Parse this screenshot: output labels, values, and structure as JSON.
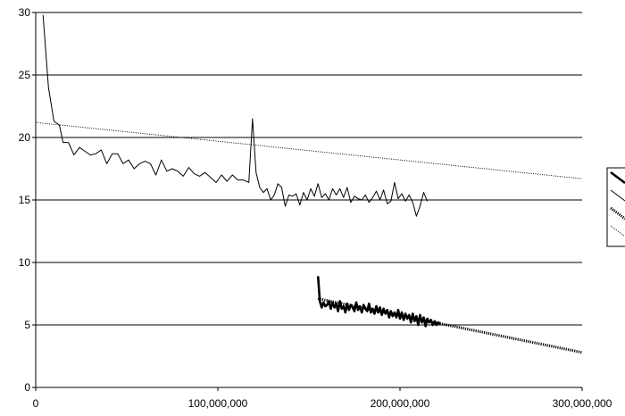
{
  "chart_data": {
    "type": "line",
    "title": "",
    "xlabel": "",
    "ylabel": "",
    "xlim": [
      0,
      300000000
    ],
    "ylim": [
      0,
      30
    ],
    "x_ticks": [
      0,
      100000000,
      200000000,
      300000000
    ],
    "x_tick_labels": [
      "0",
      "100,000,000",
      "200,000,000",
      "300,000,000"
    ],
    "y_ticks": [
      0,
      5,
      10,
      15,
      20,
      25,
      30
    ],
    "y_tick_labels": [
      "0",
      "5",
      "10",
      "15",
      "20",
      "25",
      "30"
    ],
    "grid": "horizontal",
    "legend": "right",
    "series": [
      {
        "style": "thick-solid",
        "color": "#000000",
        "points": [
          [
            155000000,
            8.9
          ],
          [
            156000000,
            6.9
          ],
          [
            157000000,
            6.4
          ],
          [
            158000000,
            6.8
          ],
          [
            159000000,
            6.5
          ],
          [
            160000000,
            6.6
          ],
          [
            161000000,
            6.9
          ],
          [
            162000000,
            6.3
          ],
          [
            163000000,
            6.8
          ],
          [
            164000000,
            6.4
          ],
          [
            165000000,
            6.7
          ],
          [
            166000000,
            6.1
          ],
          [
            167000000,
            6.9
          ],
          [
            168000000,
            6.3
          ],
          [
            169000000,
            6.5
          ],
          [
            170000000,
            6.0
          ],
          [
            171000000,
            6.7
          ],
          [
            172000000,
            6.2
          ],
          [
            173000000,
            6.6
          ],
          [
            174000000,
            6.4
          ],
          [
            175000000,
            6.1
          ],
          [
            176000000,
            6.8
          ],
          [
            177000000,
            6.2
          ],
          [
            178000000,
            6.5
          ],
          [
            179000000,
            6.0
          ],
          [
            180000000,
            6.6
          ],
          [
            181000000,
            6.3
          ],
          [
            182000000,
            6.1
          ],
          [
            183000000,
            6.7
          ],
          [
            184000000,
            6.0
          ],
          [
            185000000,
            6.3
          ],
          [
            186000000,
            5.9
          ],
          [
            187000000,
            6.5
          ],
          [
            188000000,
            6.0
          ],
          [
            189000000,
            6.4
          ],
          [
            190000000,
            5.8
          ],
          [
            191000000,
            6.3
          ],
          [
            192000000,
            5.9
          ],
          [
            193000000,
            6.2
          ],
          [
            194000000,
            5.6
          ],
          [
            195000000,
            6.1
          ],
          [
            196000000,
            5.7
          ],
          [
            197000000,
            6.0
          ],
          [
            198000000,
            5.6
          ],
          [
            199000000,
            6.2
          ],
          [
            200000000,
            5.5
          ],
          [
            201000000,
            6.0
          ],
          [
            202000000,
            5.4
          ],
          [
            203000000,
            5.9
          ],
          [
            204000000,
            5.5
          ],
          [
            205000000,
            5.8
          ],
          [
            206000000,
            5.2
          ],
          [
            207000000,
            5.9
          ],
          [
            208000000,
            5.3
          ],
          [
            209000000,
            5.7
          ],
          [
            210000000,
            5.0
          ],
          [
            211000000,
            5.8
          ],
          [
            212000000,
            5.2
          ],
          [
            213000000,
            5.6
          ],
          [
            214000000,
            4.9
          ],
          [
            215000000,
            5.5
          ],
          [
            216000000,
            5.2
          ],
          [
            217000000,
            5.4
          ],
          [
            218000000,
            5.0
          ],
          [
            219000000,
            5.3
          ],
          [
            220000000,
            5.0
          ],
          [
            221000000,
            5.2
          ],
          [
            222000000,
            5.1
          ]
        ]
      },
      {
        "style": "thin-solid",
        "color": "#000000",
        "points": [
          [
            4000000,
            29.8
          ],
          [
            7000000,
            24.0
          ],
          [
            10000000,
            21.3
          ],
          [
            13000000,
            21.0
          ],
          [
            15000000,
            19.6
          ],
          [
            18000000,
            19.6
          ],
          [
            21000000,
            18.6
          ],
          [
            24000000,
            19.2
          ],
          [
            27000000,
            18.9
          ],
          [
            30000000,
            18.6
          ],
          [
            33000000,
            18.7
          ],
          [
            36000000,
            19.0
          ],
          [
            39000000,
            17.9
          ],
          [
            42000000,
            18.7
          ],
          [
            45000000,
            18.7
          ],
          [
            48000000,
            17.9
          ],
          [
            51000000,
            18.2
          ],
          [
            54000000,
            17.5
          ],
          [
            57000000,
            17.9
          ],
          [
            60000000,
            18.1
          ],
          [
            63000000,
            17.9
          ],
          [
            66000000,
            17.0
          ],
          [
            69000000,
            18.2
          ],
          [
            72000000,
            17.3
          ],
          [
            75000000,
            17.5
          ],
          [
            78000000,
            17.3
          ],
          [
            81000000,
            16.9
          ],
          [
            84000000,
            17.6
          ],
          [
            87000000,
            17.1
          ],
          [
            90000000,
            16.9
          ],
          [
            93000000,
            17.2
          ],
          [
            96000000,
            16.8
          ],
          [
            99000000,
            16.4
          ],
          [
            102000000,
            17.0
          ],
          [
            105000000,
            16.5
          ],
          [
            108000000,
            17.0
          ],
          [
            111000000,
            16.6
          ],
          [
            114000000,
            16.6
          ],
          [
            117000000,
            16.4
          ],
          [
            119000000,
            21.5
          ],
          [
            121000000,
            17.2
          ],
          [
            123000000,
            16.0
          ],
          [
            125000000,
            15.6
          ],
          [
            127000000,
            15.9
          ],
          [
            129000000,
            15.0
          ],
          [
            131000000,
            15.4
          ],
          [
            133000000,
            16.3
          ],
          [
            135000000,
            16.0
          ],
          [
            137000000,
            14.5
          ],
          [
            139000000,
            15.4
          ],
          [
            141000000,
            15.3
          ],
          [
            143000000,
            15.5
          ],
          [
            145000000,
            14.6
          ],
          [
            147000000,
            15.6
          ],
          [
            149000000,
            15.0
          ],
          [
            151000000,
            15.9
          ],
          [
            153000000,
            15.3
          ],
          [
            155000000,
            16.3
          ],
          [
            157000000,
            15.2
          ],
          [
            159000000,
            15.5
          ],
          [
            161000000,
            15.0
          ],
          [
            163000000,
            15.9
          ],
          [
            165000000,
            15.4
          ],
          [
            167000000,
            15.9
          ],
          [
            169000000,
            15.2
          ],
          [
            171000000,
            16.0
          ],
          [
            173000000,
            14.8
          ],
          [
            175000000,
            15.3
          ],
          [
            177000000,
            15.1
          ],
          [
            179000000,
            15.0
          ],
          [
            181000000,
            15.4
          ],
          [
            183000000,
            14.8
          ],
          [
            185000000,
            15.2
          ],
          [
            187000000,
            15.7
          ],
          [
            189000000,
            15.0
          ],
          [
            191000000,
            15.8
          ],
          [
            193000000,
            14.7
          ],
          [
            195000000,
            14.9
          ],
          [
            197000000,
            16.4
          ],
          [
            199000000,
            15.1
          ],
          [
            201000000,
            15.5
          ],
          [
            203000000,
            14.9
          ],
          [
            205000000,
            15.4
          ],
          [
            207000000,
            14.8
          ],
          [
            209000000,
            13.7
          ],
          [
            211000000,
            14.5
          ],
          [
            213000000,
            15.6
          ],
          [
            215000000,
            14.9
          ]
        ]
      },
      {
        "style": "thick-dotted",
        "color": "#000000",
        "points": [
          [
            155000000,
            7.1
          ],
          [
            300000000,
            2.8
          ]
        ]
      },
      {
        "style": "thin-dotted",
        "color": "#000000",
        "points": [
          [
            0,
            21.2
          ],
          [
            300000000,
            16.7
          ]
        ]
      }
    ]
  }
}
